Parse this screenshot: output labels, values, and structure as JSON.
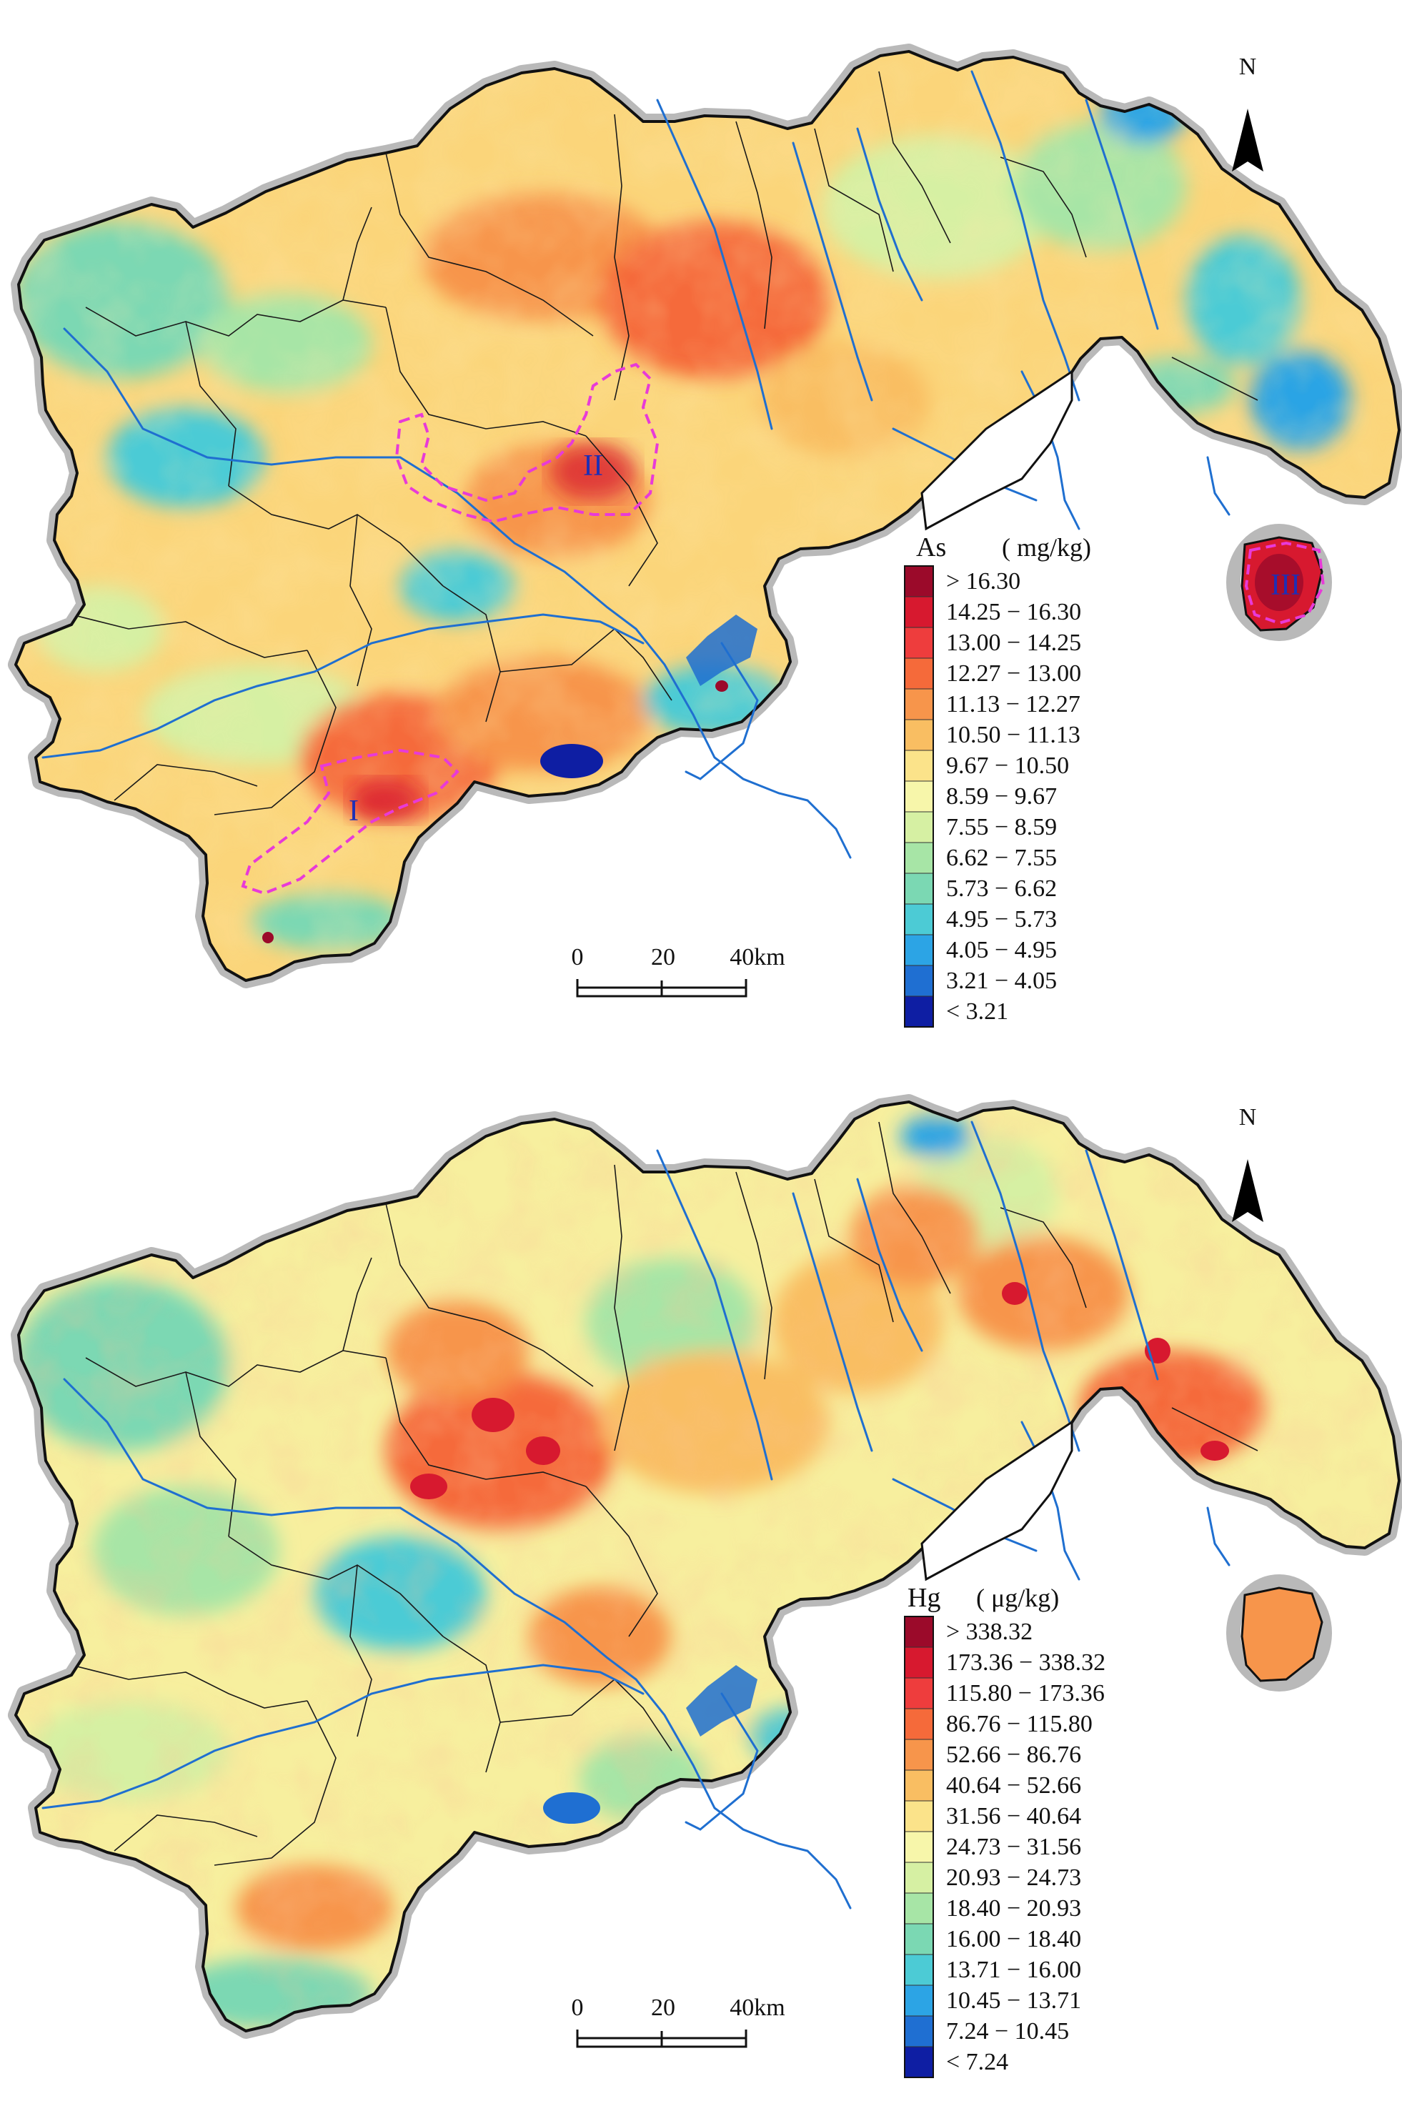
{
  "colors": {
    "ramp": [
      "#9b0a2a",
      "#d7192f",
      "#ee3d3d",
      "#f56a3a",
      "#f7954b",
      "#f9be62",
      "#fbe38a",
      "#f7f6aa",
      "#d6f0a3",
      "#a7e5a6",
      "#7bd8b3",
      "#4ccbd5",
      "#2ca4e5",
      "#1f6fd2",
      "#0e1ea3"
    ],
    "river": "#1f6fd0",
    "zone_outline": "#e83ad8",
    "zone_label": "#1f2fb5",
    "boundary": "#111111",
    "halo": "#b9b9b9"
  },
  "north_arrow": {
    "label": "N"
  },
  "scale_bar": {
    "ticks": [
      "0",
      "20",
      "40km"
    ]
  },
  "maps": [
    {
      "element": "As",
      "unit": "( mg/kg)",
      "legend": [
        "> 16.30",
        "14.25 − 16.30",
        "13.00 − 14.25",
        "12.27 − 13.00",
        "11.13 − 12.27",
        "10.50 − 11.13",
        "9.67 − 10.50",
        "8.59 − 9.67",
        "7.55 − 8.59",
        "6.62 − 7.55",
        "5.73 − 6.62",
        "4.95 − 5.73",
        "4.05 − 4.95",
        "3.21 − 4.05",
        "< 3.21"
      ],
      "zones": [
        "I",
        "II",
        "III"
      ]
    },
    {
      "element": "Hg",
      "unit": "( μg/kg)",
      "legend": [
        "> 338.32",
        "173.36 − 338.32",
        "115.80 − 173.36",
        "86.76 − 115.80",
        "52.66 − 86.76",
        "40.64 − 52.66",
        "31.56 − 40.64",
        "24.73 − 31.56",
        "20.93 − 24.73",
        "18.40 − 20.93",
        "16.00 − 18.40",
        "13.71 − 16.00",
        "10.45 − 13.71",
        "7.24 − 10.45",
        "< 7.24"
      ],
      "zones": []
    }
  ]
}
